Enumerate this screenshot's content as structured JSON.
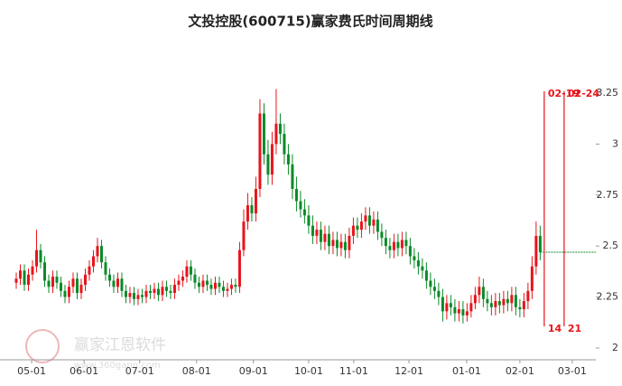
{
  "chart_data": {
    "type": "candlestick",
    "title": "文投控股(600715)赢家费氏时间周期线",
    "watermark": "赢家江恩软件",
    "watermark_url": "www.360gann.com",
    "up_color": "#e8141b",
    "down_color": "#0a8a28",
    "cycle_color": "#e8141b",
    "open": [
      2.32,
      2.34,
      2.38,
      2.31,
      2.36,
      2.4,
      2.48,
      2.42,
      2.33,
      2.3,
      2.35,
      2.32,
      2.28,
      2.25,
      2.3,
      2.34,
      2.27,
      2.31,
      2.36,
      2.4,
      2.45,
      2.5,
      2.42,
      2.36,
      2.33,
      2.3,
      2.34,
      2.28,
      2.25,
      2.27,
      2.24,
      2.26,
      2.25,
      2.28,
      2.27,
      2.29,
      2.26,
      2.3,
      2.28,
      2.27,
      2.31,
      2.33,
      2.35,
      2.4,
      2.36,
      2.32,
      2.3,
      2.33,
      2.31,
      2.29,
      2.32,
      2.3,
      2.28,
      2.29,
      2.31,
      2.3,
      2.48,
      2.62,
      2.7,
      2.66,
      2.78,
      3.15,
      2.95,
      2.85,
      3.0,
      3.1,
      3.05,
      2.95,
      2.9,
      2.78,
      2.72,
      2.68,
      2.65,
      2.6,
      2.55,
      2.58,
      2.52,
      2.56,
      2.5,
      2.53,
      2.49,
      2.52,
      2.48,
      2.55,
      2.6,
      2.58,
      2.62,
      2.65,
      2.6,
      2.63,
      2.57,
      2.54,
      2.5,
      2.48,
      2.52,
      2.49,
      2.53,
      2.5,
      2.45,
      2.43,
      2.4,
      2.38,
      2.33,
      2.3,
      2.28,
      2.25,
      2.18,
      2.22,
      2.2,
      2.17,
      2.19,
      2.16,
      2.18,
      2.22,
      2.26,
      2.3,
      2.24,
      2.22,
      2.2,
      2.23,
      2.21,
      2.24,
      2.22,
      2.26,
      2.2,
      2.19,
      2.23,
      2.28,
      2.4,
      2.55
    ],
    "high": [
      2.37,
      2.41,
      2.41,
      2.39,
      2.43,
      2.58,
      2.51,
      2.45,
      2.36,
      2.38,
      2.38,
      2.35,
      2.31,
      2.33,
      2.37,
      2.37,
      2.34,
      2.39,
      2.43,
      2.48,
      2.54,
      2.53,
      2.45,
      2.39,
      2.36,
      2.37,
      2.37,
      2.31,
      2.3,
      2.3,
      2.29,
      2.29,
      2.31,
      2.31,
      2.32,
      2.32,
      2.33,
      2.33,
      2.31,
      2.34,
      2.36,
      2.38,
      2.43,
      2.43,
      2.39,
      2.35,
      2.36,
      2.36,
      2.34,
      2.35,
      2.35,
      2.33,
      2.32,
      2.34,
      2.34,
      2.52,
      2.68,
      2.76,
      2.74,
      2.84,
      3.22,
      3.2,
      3.02,
      3.06,
      3.27,
      3.15,
      3.1,
      3.0,
      2.95,
      2.84,
      2.77,
      2.73,
      2.7,
      2.65,
      2.62,
      2.62,
      2.6,
      2.6,
      2.57,
      2.57,
      2.56,
      2.56,
      2.59,
      2.64,
      2.64,
      2.66,
      2.69,
      2.69,
      2.67,
      2.67,
      2.61,
      2.58,
      2.54,
      2.56,
      2.56,
      2.57,
      2.57,
      2.54,
      2.49,
      2.47,
      2.44,
      2.42,
      2.37,
      2.34,
      2.32,
      2.29,
      2.26,
      2.26,
      2.24,
      2.23,
      2.23,
      2.22,
      2.26,
      2.3,
      2.35,
      2.34,
      2.28,
      2.26,
      2.27,
      2.27,
      2.28,
      2.28,
      2.3,
      2.3,
      2.24,
      2.27,
      2.32,
      2.45,
      2.62,
      2.6
    ],
    "low": [
      2.29,
      2.31,
      2.28,
      2.28,
      2.33,
      2.37,
      2.39,
      2.3,
      2.27,
      2.27,
      2.29,
      2.25,
      2.22,
      2.22,
      2.27,
      2.24,
      2.24,
      2.28,
      2.33,
      2.37,
      2.42,
      2.39,
      2.33,
      2.3,
      2.27,
      2.27,
      2.25,
      2.22,
      2.22,
      2.21,
      2.21,
      2.22,
      2.22,
      2.24,
      2.24,
      2.23,
      2.23,
      2.25,
      2.24,
      2.24,
      2.28,
      2.3,
      2.32,
      2.33,
      2.29,
      2.27,
      2.27,
      2.28,
      2.26,
      2.26,
      2.27,
      2.25,
      2.25,
      2.26,
      2.27,
      2.27,
      2.45,
      2.58,
      2.62,
      2.62,
      2.74,
      2.9,
      2.8,
      2.8,
      2.95,
      3.0,
      2.9,
      2.85,
      2.73,
      2.67,
      2.64,
      2.61,
      2.56,
      2.51,
      2.51,
      2.48,
      2.48,
      2.46,
      2.46,
      2.45,
      2.45,
      2.44,
      2.44,
      2.51,
      2.54,
      2.54,
      2.58,
      2.56,
      2.56,
      2.53,
      2.5,
      2.46,
      2.44,
      2.44,
      2.45,
      2.45,
      2.46,
      2.41,
      2.39,
      2.36,
      2.34,
      2.29,
      2.26,
      2.24,
      2.21,
      2.13,
      2.14,
      2.16,
      2.13,
      2.13,
      2.12,
      2.13,
      2.15,
      2.19,
      2.22,
      2.2,
      2.18,
      2.16,
      2.16,
      2.17,
      2.17,
      2.18,
      2.18,
      2.16,
      2.15,
      2.15,
      2.19,
      2.24,
      2.36,
      2.43
    ],
    "close": [
      2.34,
      2.38,
      2.31,
      2.36,
      2.4,
      2.48,
      2.42,
      2.33,
      2.3,
      2.35,
      2.32,
      2.28,
      2.25,
      2.3,
      2.34,
      2.27,
      2.31,
      2.36,
      2.4,
      2.45,
      2.5,
      2.42,
      2.36,
      2.33,
      2.3,
      2.34,
      2.28,
      2.25,
      2.27,
      2.24,
      2.26,
      2.25,
      2.28,
      2.27,
      2.29,
      2.26,
      2.3,
      2.28,
      2.27,
      2.31,
      2.33,
      2.35,
      2.4,
      2.36,
      2.32,
      2.3,
      2.33,
      2.31,
      2.29,
      2.32,
      2.3,
      2.28,
      2.29,
      2.31,
      2.3,
      2.48,
      2.62,
      2.7,
      2.66,
      2.78,
      3.15,
      2.95,
      2.85,
      3.0,
      3.1,
      3.05,
      2.95,
      2.9,
      2.78,
      2.72,
      2.68,
      2.65,
      2.6,
      2.55,
      2.58,
      2.52,
      2.56,
      2.5,
      2.53,
      2.49,
      2.52,
      2.48,
      2.55,
      2.6,
      2.58,
      2.62,
      2.65,
      2.6,
      2.63,
      2.57,
      2.54,
      2.5,
      2.48,
      2.52,
      2.49,
      2.53,
      2.5,
      2.45,
      2.43,
      2.4,
      2.38,
      2.33,
      2.3,
      2.28,
      2.25,
      2.18,
      2.22,
      2.2,
      2.17,
      2.19,
      2.16,
      2.18,
      2.22,
      2.26,
      2.3,
      2.24,
      2.22,
      2.2,
      2.23,
      2.21,
      2.24,
      2.22,
      2.26,
      2.2,
      2.19,
      2.23,
      2.28,
      2.4,
      2.55,
      2.47
    ],
    "xlim": [
      -4,
      142.7
    ],
    "xticks": [
      {
        "value": 3.8,
        "label": "05-01"
      },
      {
        "value": 16.7,
        "label": "06-01"
      },
      {
        "value": 30.4,
        "label": "07-01"
      },
      {
        "value": 44.4,
        "label": "08-01"
      },
      {
        "value": 58.4,
        "label": "09-01"
      },
      {
        "value": 72,
        "label": "10-01"
      },
      {
        "value": 83.1,
        "label": "11-01"
      },
      {
        "value": 96.7,
        "label": "12-01"
      },
      {
        "value": 110.9,
        "label": "01-01"
      },
      {
        "value": 124,
        "label": "02-01"
      },
      {
        "value": 136.9,
        "label": "03-01"
      }
    ],
    "ylim": [
      1.96,
      3.35
    ],
    "yticks": [
      2,
      2.25,
      2.5,
      2.75,
      3,
      3.25
    ],
    "cycle_lines": [
      {
        "x": 130,
        "label": "02-19",
        "count": 14
      },
      {
        "x": 134.9,
        "label": "02-24",
        "count": 21
      }
    ]
  }
}
